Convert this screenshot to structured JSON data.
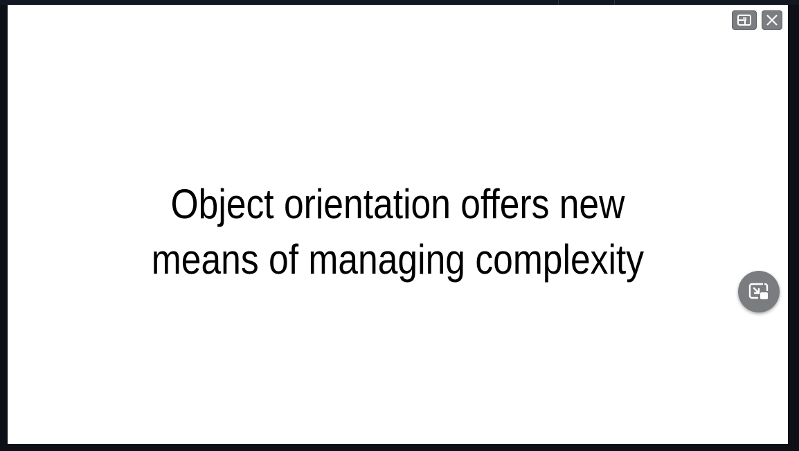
{
  "slide": {
    "line1": "Object orientation offers new",
    "line2": "means of managing complexity"
  },
  "controls": {
    "restore_icon": "restore-window-icon",
    "close_icon": "close-icon",
    "pip_icon": "picture-in-picture-icon"
  },
  "colors": {
    "background": "#0d1117",
    "slide": "#ffffff",
    "button": "#7b7d80",
    "text": "#000000"
  }
}
